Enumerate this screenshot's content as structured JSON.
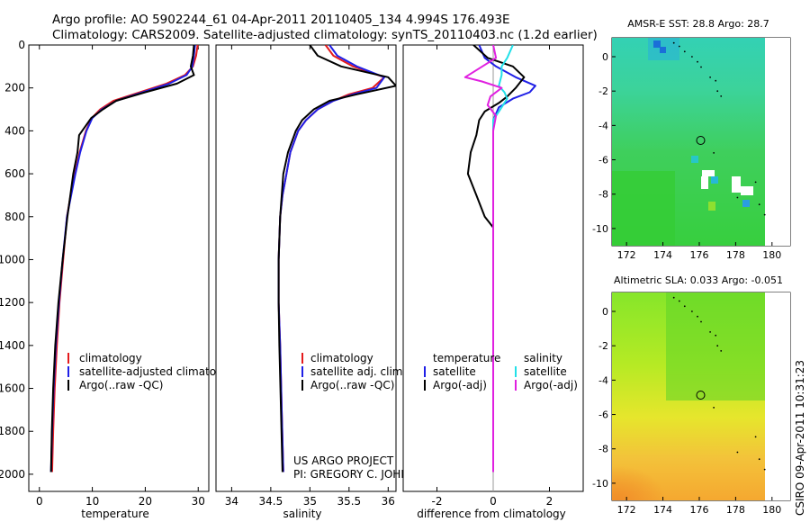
{
  "header": {
    "title_line1": "Argo profile: AO 5902244_61 04-Apr-2011 20110405_134 4.994S 176.493E",
    "title_line2": "Climatology: CARS2009. Satellite-adjusted climatology: synTS_20110403.nc (1.2d earlier)"
  },
  "credits": {
    "project": "US ARGO PROJECT",
    "pi": "PI: GREGORY C. JOHNSON",
    "stamp": "CSIRO 09-Apr-2011 10:31:23"
  },
  "colors": {
    "climatology": "#e41a1c",
    "satellite": "#1f1fe6",
    "argo": "#000000",
    "cyan": "#22e0e8",
    "magenta": "#e020e0"
  },
  "chart_data": [
    {
      "type": "line",
      "id": "temperature",
      "xlabel": "temperature",
      "ylabel": "",
      "xlim": [
        -2,
        32
      ],
      "ylim": [
        2080,
        0
      ],
      "xticks": [
        0,
        10,
        20,
        30
      ],
      "yticks": [
        0,
        200,
        400,
        600,
        800,
        1000,
        1200,
        1400,
        1600,
        1800,
        2000
      ],
      "legend": [
        "climatology",
        "satellite-adjusted climatology",
        "Argo(..raw -QC)"
      ],
      "series": [
        {
          "name": "climatology",
          "color": "#e41a1c",
          "x": [
            29.9,
            29.6,
            29.0,
            27.5,
            24,
            19,
            14,
            11.5,
            9.9,
            8.8,
            7.6,
            6.7,
            5.9,
            5.2,
            4.5,
            3.8,
            3.3,
            2.9,
            2.6,
            2.4
          ],
          "y": [
            0,
            50,
            100,
            140,
            180,
            220,
            260,
            300,
            340,
            400,
            500,
            600,
            700,
            800,
            1000,
            1200,
            1400,
            1600,
            1800,
            1990
          ]
        },
        {
          "name": "satellite",
          "color": "#1f1fe6",
          "x": [
            29.4,
            29.2,
            28.9,
            27.8,
            24.5,
            19.5,
            14.5,
            11.8,
            10.0,
            8.9,
            7.7,
            6.8,
            6.0,
            5.2,
            4.4,
            3.7,
            3.1,
            2.7,
            2.4,
            2.2
          ],
          "y": [
            0,
            50,
            100,
            140,
            180,
            220,
            260,
            300,
            340,
            400,
            500,
            600,
            700,
            800,
            1000,
            1200,
            1400,
            1600,
            1800,
            1990
          ]
        },
        {
          "name": "Argo",
          "color": "#000000",
          "x": [
            29.2,
            29.0,
            28.6,
            29.2,
            26,
            20,
            14.5,
            12,
            9.8,
            7.5,
            7.2,
            6.4,
            5.3,
            4.4,
            3.6,
            3.0,
            2.6,
            2.35,
            2.2
          ],
          "y": [
            0,
            50,
            100,
            140,
            180,
            220,
            260,
            300,
            340,
            420,
            500,
            600,
            800,
            1000,
            1200,
            1400,
            1600,
            1800,
            1990
          ]
        }
      ]
    },
    {
      "type": "line",
      "id": "salinity",
      "xlabel": "salinity",
      "ylabel": "",
      "xlim": [
        33.8,
        36.1
      ],
      "ylim": [
        2080,
        0
      ],
      "xticks": [
        34,
        34.5,
        35,
        35.5,
        36
      ],
      "xtick_labels": [
        "34",
        "34.5",
        "35",
        "35.5",
        "36"
      ],
      "yticks": [],
      "legend": [
        "climatology",
        "satellite adj. clim.",
        "Argo(..raw -QC)"
      ],
      "series": [
        {
          "name": "climatology",
          "color": "#e41a1c",
          "x": [
            35.2,
            35.3,
            35.55,
            35.95,
            35.8,
            35.5,
            35.3,
            35.1,
            34.95,
            34.85,
            34.75,
            34.7,
            34.65,
            34.62,
            34.6,
            34.6,
            34.62,
            34.64,
            34.66
          ],
          "y": [
            0,
            50,
            100,
            150,
            200,
            230,
            260,
            300,
            350,
            400,
            500,
            600,
            700,
            800,
            1000,
            1200,
            1400,
            1700,
            1990
          ]
        },
        {
          "name": "satellite",
          "color": "#1f1fe6",
          "x": [
            35.25,
            35.35,
            35.6,
            35.95,
            35.85,
            35.55,
            35.3,
            35.1,
            34.95,
            34.85,
            34.75,
            34.7,
            34.65,
            34.62,
            34.6,
            34.6,
            34.62,
            34.64,
            34.66
          ],
          "y": [
            0,
            50,
            100,
            150,
            200,
            230,
            260,
            300,
            350,
            400,
            500,
            600,
            700,
            800,
            1000,
            1200,
            1400,
            1700,
            1990
          ]
        },
        {
          "name": "Argo",
          "color": "#000000",
          "x": [
            35.0,
            35.1,
            35.4,
            36.0,
            36.1,
            35.6,
            35.25,
            35.05,
            34.9,
            34.82,
            34.72,
            34.66,
            34.62,
            34.6,
            34.6,
            34.61,
            34.63,
            34.65
          ],
          "y": [
            0,
            50,
            100,
            150,
            190,
            230,
            260,
            300,
            350,
            400,
            500,
            600,
            800,
            1000,
            1200,
            1400,
            1700,
            1990
          ]
        }
      ]
    },
    {
      "type": "line",
      "id": "difference",
      "xlabel": "difference from climatology",
      "ylabel": "",
      "xlim": [
        -3.2,
        3.2
      ],
      "ylim": [
        2080,
        0
      ],
      "xticks": [
        -2,
        0,
        2
      ],
      "yticks": [],
      "legend_groups": [
        {
          "title": "temperature",
          "items": [
            "satellite",
            "Argo(-adj)"
          ]
        },
        {
          "title": "salinity",
          "items": [
            "satellite",
            "Argo(-adj)"
          ]
        }
      ],
      "series": [
        {
          "name": "temperature satellite",
          "color": "#1f1fe6",
          "x": [
            -0.5,
            -0.3,
            0.1,
            0.8,
            1.5,
            1.3,
            0.7,
            0.2,
            0,
            0,
            0,
            0,
            0
          ],
          "y": [
            0,
            60,
            100,
            150,
            190,
            220,
            250,
            290,
            350,
            500,
            800,
            1400,
            1990
          ]
        },
        {
          "name": "temperature Argo(-adj)",
          "color": "#000000",
          "x": [
            -0.7,
            -0.2,
            0.7,
            1.1,
            0.8,
            0.5,
            0.2,
            -0.3,
            -0.5,
            -0.6,
            -0.8,
            -0.9,
            -0.6,
            -0.3,
            0,
            0,
            0
          ],
          "y": [
            0,
            60,
            100,
            150,
            200,
            240,
            270,
            310,
            350,
            420,
            500,
            600,
            700,
            800,
            850,
            1200,
            1990
          ]
        },
        {
          "name": "salinity satellite",
          "color": "#22e0e8",
          "x": [
            0.7,
            0.5,
            0.3,
            0.3,
            0.2,
            0.4,
            0.5,
            0.3,
            0,
            0,
            0,
            0
          ],
          "y": [
            0,
            60,
            100,
            140,
            190,
            220,
            250,
            290,
            350,
            500,
            1000,
            1990
          ]
        },
        {
          "name": "salinity Argo(-adj)",
          "color": "#e020e0",
          "x": [
            0,
            0.1,
            -1.0,
            -0.4,
            0.3,
            -0.1,
            -0.2,
            0.1,
            0,
            0,
            0,
            0
          ],
          "y": [
            0,
            60,
            150,
            170,
            200,
            240,
            280,
            330,
            400,
            600,
            1000,
            1990
          ]
        }
      ]
    },
    {
      "type": "heatmap",
      "id": "sst",
      "title": "AMSR-E SST: 28.8 Argo: 28.7",
      "xlim": [
        171.2,
        181
      ],
      "ylim": [
        -11,
        1.1
      ],
      "xticks": [
        172,
        174,
        176,
        178,
        180
      ],
      "yticks": [
        0,
        -2,
        -4,
        -6,
        -8,
        -10
      ],
      "marker": {
        "lon": 176.5,
        "lat": -5.0
      }
    },
    {
      "type": "heatmap",
      "id": "sla",
      "title": "Altimetric SLA: 0.033 Argo: -0.051",
      "xlim": [
        171.2,
        181
      ],
      "ylim": [
        -11,
        1.1
      ],
      "xticks": [
        172,
        174,
        176,
        178,
        180
      ],
      "yticks": [
        0,
        -2,
        -4,
        -6,
        -8,
        -10
      ],
      "marker": {
        "lon": 176.5,
        "lat": -5.0
      }
    }
  ]
}
